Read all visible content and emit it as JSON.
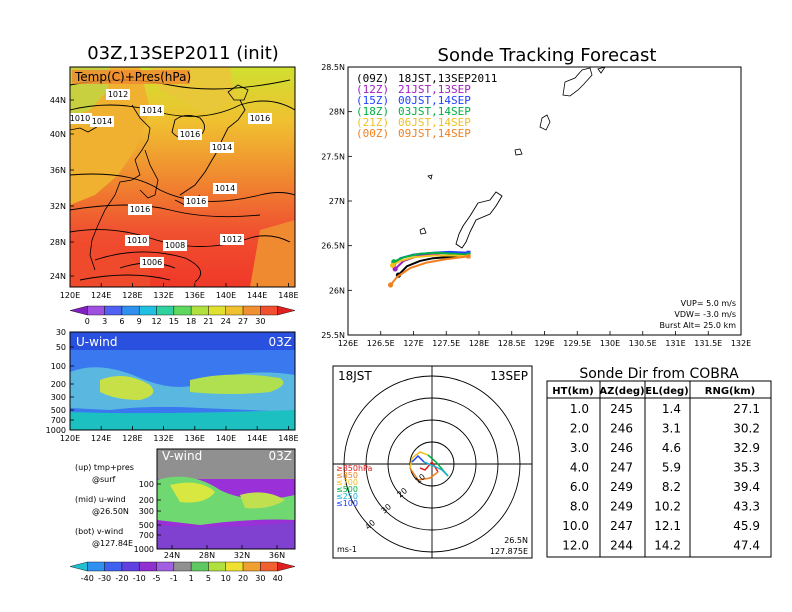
{
  "left_title": "03Z,13SEP2011 (init)",
  "map_panel": {
    "label": "Temp(C)+Pres(hPa)",
    "lat_ticks": [
      "44N",
      "40N",
      "36N",
      "32N",
      "28N",
      "24N"
    ],
    "lon_ticks": [
      "120E",
      "124E",
      "128E",
      "132E",
      "136E",
      "140E",
      "144E",
      "148E"
    ],
    "isobar_labels": [
      "1012",
      "1014",
      "1010",
      "1014",
      "1016",
      "1016",
      "1014",
      "1016",
      "1016",
      "1014",
      "1010",
      "1008",
      "1012",
      "1006"
    ]
  },
  "temp_colorbar": {
    "labels": [
      "0",
      "3",
      "6",
      "9",
      "12",
      "15",
      "18",
      "21",
      "24",
      "27",
      "30"
    ]
  },
  "u_panel": {
    "label": "U-wind",
    "time": "03Z",
    "p_ticks": [
      "30",
      "50",
      "100",
      "200",
      "300",
      "500",
      "700",
      "1000"
    ],
    "lon_ticks": [
      "120E",
      "124E",
      "128E",
      "132E",
      "136E",
      "140E",
      "144E",
      "148E"
    ]
  },
  "v_panel": {
    "label": "V-wind",
    "time": "03Z",
    "p_ticks": [
      "100",
      "200",
      "300",
      "500",
      "700",
      "1000"
    ],
    "lat_ticks": [
      "24N",
      "28N",
      "32N",
      "36N"
    ]
  },
  "notes": [
    {
      "a": "(up) tmp+pres",
      "b": "@surf"
    },
    {
      "a": "(mid) u-wind",
      "b": "@26.50N"
    },
    {
      "a": "(bot) v-wind",
      "b": "@127.84E"
    }
  ],
  "wind_colorbar": {
    "labels": [
      "-40",
      "-30",
      "-20",
      "-10",
      "-5",
      "-1",
      "1",
      "5",
      "10",
      "20",
      "30",
      "40"
    ]
  },
  "right_title": "Sonde Tracking Forecast",
  "chart_data": {
    "type": "line",
    "title": "Sonde Tracking Forecast",
    "x_ticks": [
      "126E",
      "126.5E",
      "127E",
      "127.5E",
      "128E",
      "128.5E",
      "129E",
      "129.5E",
      "130E",
      "130.5E",
      "131E",
      "131.5E",
      "132E"
    ],
    "y_ticks": [
      "25.5N",
      "26N",
      "26.5N",
      "27N",
      "27.5N",
      "28N",
      "28.5N"
    ],
    "xlim": [
      126,
      132
    ],
    "ylim": [
      25.5,
      28.5
    ],
    "legend": [
      {
        "code": "(09Z)",
        "text": "18JST,13SEP2011",
        "color": "#000000"
      },
      {
        "code": "(12Z)",
        "text": "21JST,13SEP",
        "color": "#a020c0"
      },
      {
        "code": "(15Z)",
        "text": "00JST,14SEP",
        "color": "#2040ff"
      },
      {
        "code": "(18Z)",
        "text": "03JST,14SEP",
        "color": "#00b040"
      },
      {
        "code": "(21Z)",
        "text": "06JST,14SEP",
        "color": "#f0c020"
      },
      {
        "code": "(00Z)",
        "text": "09JST,14SEP",
        "color": "#f08020"
      }
    ],
    "series": [
      {
        "color": "#000000",
        "x": [
          126.77,
          126.9,
          127.1,
          127.3,
          127.5,
          127.7,
          127.84
        ],
        "y": [
          26.17,
          26.27,
          26.33,
          26.36,
          26.37,
          26.38,
          26.38
        ]
      },
      {
        "color": "#a020c0",
        "x": [
          126.72,
          126.85,
          127.05,
          127.3,
          127.55,
          127.84
        ],
        "y": [
          26.24,
          26.33,
          26.38,
          26.41,
          26.42,
          26.42
        ]
      },
      {
        "color": "#2040ff",
        "x": [
          126.7,
          126.8,
          127.0,
          127.3,
          127.55,
          127.84
        ],
        "y": [
          26.3,
          26.36,
          26.4,
          26.42,
          26.43,
          26.42
        ]
      },
      {
        "color": "#00b040",
        "x": [
          126.7,
          126.85,
          127.1,
          127.35,
          127.6,
          127.84
        ],
        "y": [
          26.32,
          26.37,
          26.41,
          26.42,
          26.41,
          26.4
        ]
      },
      {
        "color": "#f0c020",
        "x": [
          126.68,
          126.8,
          127.0,
          127.3,
          127.6,
          127.84
        ],
        "y": [
          26.28,
          26.33,
          26.37,
          26.39,
          26.39,
          26.38
        ]
      },
      {
        "color": "#f08020",
        "x": [
          126.65,
          126.75,
          126.95,
          127.2,
          127.5,
          127.84
        ],
        "y": [
          26.06,
          26.15,
          26.25,
          26.31,
          26.35,
          26.38
        ]
      }
    ],
    "params": [
      "VUP=  5.0  m/s",
      "VDW= -3.0  m/s",
      "Burst Alt=  25.0  km"
    ]
  },
  "hodo": {
    "time_label": "18JST",
    "date_label": "13SEP",
    "pos1": "26.5N",
    "pos2": "127.875E",
    "unit": "ms-1",
    "levels": [
      {
        "text": "≥850hPa",
        "color": "#e02020"
      },
      {
        "text": "≤850",
        "color": "#f08020"
      },
      {
        "text": "≤700",
        "color": "#f0c020"
      },
      {
        "text": "≤500",
        "color": "#00b040"
      },
      {
        "text": "≤250",
        "color": "#20b0d0"
      },
      {
        "text": "≤100",
        "color": "#2040ff"
      }
    ],
    "ring_labels": [
      "10",
      "20",
      "30",
      "40"
    ]
  },
  "table": {
    "title": "Sonde Dir from COBRA",
    "headers": [
      "HT(km)",
      "AZ(deg)",
      "EL(deg)",
      "RNG(km)"
    ],
    "rows": [
      [
        "1.0",
        "245",
        "1.4",
        "27.1"
      ],
      [
        "2.0",
        "246",
        "3.1",
        "30.2"
      ],
      [
        "3.0",
        "246",
        "4.6",
        "32.9"
      ],
      [
        "4.0",
        "247",
        "5.9",
        "35.3"
      ],
      [
        "6.0",
        "249",
        "8.2",
        "39.4"
      ],
      [
        "8.0",
        "249",
        "10.2",
        "43.3"
      ],
      [
        "10.0",
        "247",
        "12.1",
        "45.9"
      ],
      [
        "12.0",
        "244",
        "14.2",
        "47.4"
      ]
    ]
  }
}
